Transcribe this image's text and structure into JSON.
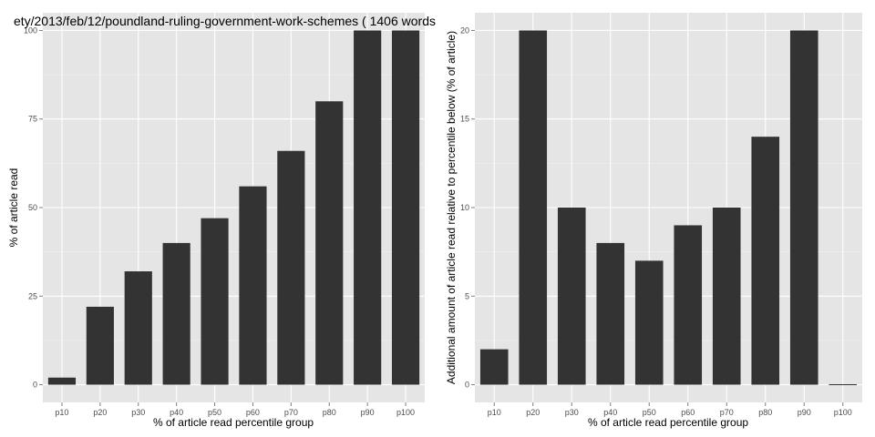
{
  "figure_title": "ety/2013/feb/12/poundland-ruling-government-work-schemes ( 1406 words",
  "chart_data": [
    {
      "type": "bar",
      "title": "",
      "xlabel": "% of article read percentile group",
      "ylabel": "% of article read",
      "categories": [
        "p10",
        "p20",
        "p30",
        "p40",
        "p50",
        "p60",
        "p70",
        "p80",
        "p90",
        "p100"
      ],
      "values": [
        2,
        22,
        32,
        40,
        47,
        56,
        66,
        80,
        100,
        100
      ],
      "ylim": [
        -5,
        105
      ],
      "yticks": [
        0,
        25,
        50,
        75,
        100
      ],
      "grid": true,
      "bar_color": "#333333",
      "panel_color": "#e5e5e5",
      "grid_color": "#ffffff"
    },
    {
      "type": "bar",
      "title": "",
      "xlabel": "% of article read percentile group",
      "ylabel": "Additional amount of article read relative to percentile below (% of article)",
      "categories": [
        "p10",
        "p20",
        "p30",
        "p40",
        "p50",
        "p60",
        "p70",
        "p80",
        "p90",
        "p100"
      ],
      "values": [
        2,
        20,
        10,
        8,
        7,
        9,
        10,
        14,
        20,
        0
      ],
      "ylim": [
        -1,
        21
      ],
      "yticks": [
        0,
        5,
        10,
        15,
        20
      ],
      "grid": true,
      "bar_color": "#333333",
      "panel_color": "#e5e5e5",
      "grid_color": "#ffffff"
    }
  ]
}
